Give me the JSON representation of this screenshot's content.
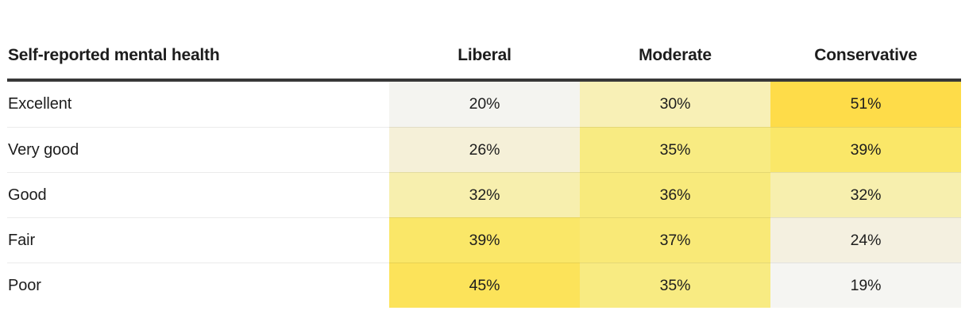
{
  "table": {
    "title_column_header": "Self-reported mental health",
    "columns": [
      "Liberal",
      "Moderate",
      "Conservative"
    ],
    "rows": [
      {
        "label": "Excellent",
        "cells": [
          {
            "display": "20%",
            "color": "#f4f4f0"
          },
          {
            "display": "30%",
            "color": "#f8f0b6"
          },
          {
            "display": "51%",
            "color": "#fedc49"
          }
        ]
      },
      {
        "label": "Very good",
        "cells": [
          {
            "display": "26%",
            "color": "#f5f0d8"
          },
          {
            "display": "35%",
            "color": "#f8eb82"
          },
          {
            "display": "39%",
            "color": "#fae768"
          }
        ]
      },
      {
        "label": "Good",
        "cells": [
          {
            "display": "32%",
            "color": "#f7efae"
          },
          {
            "display": "36%",
            "color": "#f8ea7c"
          },
          {
            "display": "32%",
            "color": "#f7efae"
          }
        ]
      },
      {
        "label": "Fair",
        "cells": [
          {
            "display": "39%",
            "color": "#fae768"
          },
          {
            "display": "37%",
            "color": "#f9e977"
          },
          {
            "display": "24%",
            "color": "#f4f0e0"
          }
        ]
      },
      {
        "label": "Poor",
        "cells": [
          {
            "display": "45%",
            "color": "#fce35a"
          },
          {
            "display": "35%",
            "color": "#f8eb82"
          },
          {
            "display": "19%",
            "color": "#f5f5f2"
          }
        ]
      }
    ]
  },
  "chart_data": {
    "type": "heatmap",
    "title": "Self-reported mental health",
    "categories": [
      "Excellent",
      "Very good",
      "Good",
      "Fair",
      "Poor"
    ],
    "series": [
      {
        "name": "Liberal",
        "values": [
          20,
          26,
          32,
          39,
          45
        ]
      },
      {
        "name": "Moderate",
        "values": [
          30,
          35,
          36,
          37,
          35
        ]
      },
      {
        "name": "Conservative",
        "values": [
          51,
          39,
          32,
          24,
          19
        ]
      }
    ],
    "unit": "%",
    "value_range": [
      19,
      51
    ],
    "color_scale": {
      "low": "#f5f5f2",
      "high": "#fedc49"
    },
    "header_rule_color": "#383838",
    "text_color": "#1d1d1d",
    "legend_position": "none",
    "grid": "row-separators-only"
  }
}
